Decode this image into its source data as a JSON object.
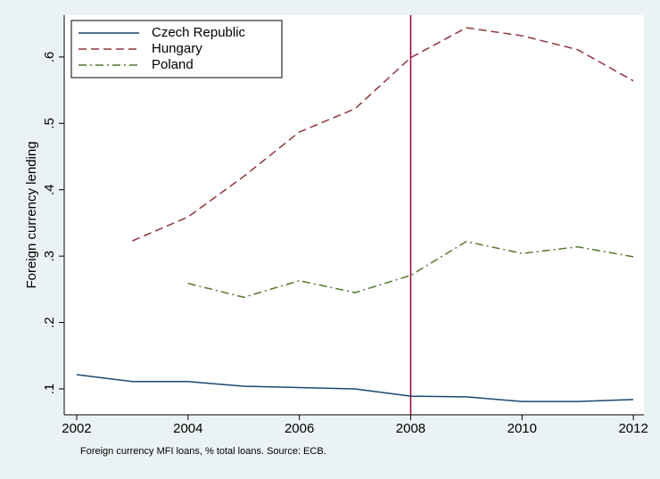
{
  "chart_data": {
    "type": "line",
    "x": [
      2002,
      2003,
      2004,
      2005,
      2006,
      2007,
      2008,
      2009,
      2010,
      2011,
      2012
    ],
    "series": [
      {
        "name": "Czech Republic",
        "color": "#1a476f",
        "dash": "solid",
        "values": [
          0.1215,
          0.111,
          0.111,
          0.104,
          0.102,
          0.1,
          0.089,
          0.088,
          0.081,
          0.081,
          0.084
        ]
      },
      {
        "name": "Hungary",
        "color": "#90353b",
        "dash": "dashed",
        "values": [
          null,
          0.323,
          0.359,
          0.42,
          0.487,
          0.522,
          0.599,
          0.644,
          0.632,
          0.611,
          0.564
        ]
      },
      {
        "name": "Poland",
        "color": "#55752f",
        "dash": "dashdot",
        "values": [
          null,
          null,
          0.259,
          0.238,
          0.263,
          0.245,
          0.271,
          0.322,
          0.304,
          0.314,
          0.299
        ]
      }
    ],
    "xlim": [
      2001.776,
      2012.19
    ],
    "ylim": [
      0.061,
      0.663
    ],
    "xticks": [
      2002,
      2004,
      2006,
      2008,
      2010,
      2012
    ],
    "yticks": [
      {
        "value": 0.1,
        "label": ".1"
      },
      {
        "value": 0.2,
        "label": ".2"
      },
      {
        "value": 0.3,
        "label": ".3"
      },
      {
        "value": 0.4,
        "label": ".4"
      },
      {
        "value": 0.5,
        "label": ".5"
      },
      {
        "value": 0.6,
        "label": ".6"
      }
    ],
    "ylabel": "Foreign currency lending",
    "note": "Foreign currency MFI loans, % total loans. Source: ECB.",
    "vline": 2008,
    "vline_color": "#990033",
    "legend": "top-left",
    "grid": false
  }
}
